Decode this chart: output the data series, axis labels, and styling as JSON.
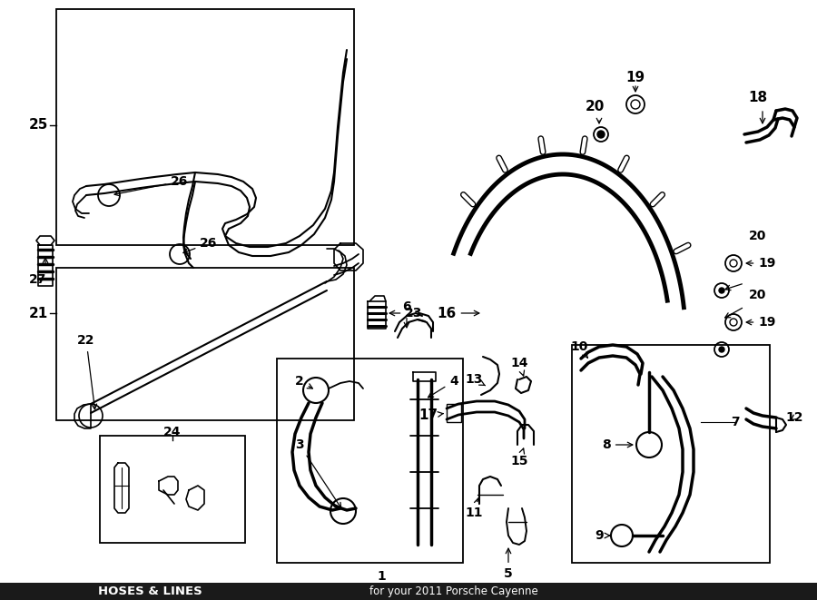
{
  "title": "HOSES & LINES",
  "subtitle": "for your 2011 Porsche Cayenne",
  "bg_color": "#ffffff",
  "lc": "#000000",
  "fig_width": 9.0,
  "fig_height": 6.61
}
